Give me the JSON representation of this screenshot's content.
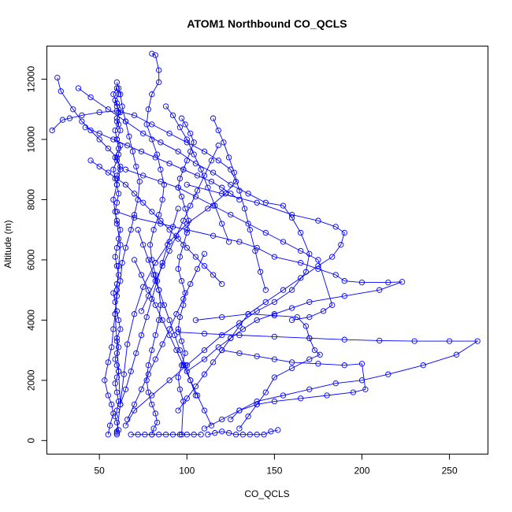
{
  "chart_data": {
    "type": "line",
    "title": "ATOM1 Northbound CO_QCLS",
    "xlabel": "CO_QCLS",
    "ylabel": "Altitude (m)",
    "xlim": [
      20,
      272
    ],
    "ylim": [
      -450,
      13100
    ],
    "xticks": [
      50,
      100,
      150,
      200,
      250
    ],
    "yticks": [
      0,
      2000,
      4000,
      6000,
      8000,
      10000,
      12000
    ],
    "grid": false,
    "series_color": "#0000ff",
    "marker": "open-circle",
    "series": [
      {
        "x": [
          60,
          60,
          61,
          60,
          59,
          60,
          61,
          60,
          59,
          60,
          61,
          60,
          59,
          60,
          61,
          60,
          62,
          61,
          60,
          59,
          58,
          60,
          61,
          60,
          59,
          60,
          61,
          62,
          60,
          59,
          60,
          61,
          60,
          59,
          58,
          60,
          61,
          62,
          60,
          59,
          61,
          60,
          62,
          60,
          59,
          61,
          60,
          58,
          60,
          61,
          60,
          62,
          60,
          61,
          59,
          62,
          60
        ],
        "y": [
          200,
          250,
          350,
          600,
          800,
          1000,
          1300,
          1600,
          1900,
          2100,
          2300,
          2500,
          2700,
          2900,
          3100,
          3400,
          3700,
          4000,
          4300,
          4600,
          4900,
          5200,
          5500,
          5800,
          6100,
          6400,
          6700,
          7000,
          7300,
          7600,
          7900,
          8200,
          8500,
          8700,
          9000,
          9300,
          9500,
          9800,
          10000,
          10300,
          10500,
          10700,
          10900,
          11100,
          11300,
          11500,
          11700,
          11500,
          11200,
          10900,
          10600,
          10300,
          10000,
          9700,
          9400,
          9100,
          8800
        ]
      },
      {
        "x": [
          55,
          56,
          58,
          57,
          55,
          53,
          55,
          57,
          58,
          59,
          60,
          62,
          63,
          65,
          68,
          70,
          72,
          73,
          71,
          69,
          67,
          65,
          63,
          62,
          61,
          60
        ],
        "y": [
          200,
          500,
          900,
          1200,
          1500,
          2000,
          2600,
          3100,
          3700,
          4200,
          4800,
          5300,
          5900,
          6400,
          7000,
          7500,
          8000,
          8600,
          9100,
          9600,
          10100,
          10600,
          11100,
          11500,
          11700,
          11900
        ]
      },
      {
        "x": [
          26,
          28,
          35,
          40,
          45,
          50,
          55,
          60,
          62,
          60,
          58,
          60,
          62,
          61,
          60,
          59,
          60,
          61,
          62,
          60
        ],
        "y": [
          12050,
          11600,
          11000,
          10600,
          10300,
          10000,
          9700,
          9400,
          9000,
          8500,
          8000,
          7200,
          6500,
          5800,
          5000,
          4200,
          3300,
          2300,
          1200,
          300
        ]
      },
      {
        "x": [
          23,
          29,
          33,
          40,
          50,
          60,
          70,
          80,
          90,
          100,
          110,
          118,
          125,
          128,
          122,
          112,
          100,
          90,
          82,
          75,
          70,
          66,
          64,
          62
        ],
        "y": [
          10300,
          10650,
          10700,
          10800,
          10900,
          10950,
          10800,
          10500,
          10200,
          9900,
          9600,
          9300,
          9000,
          8600,
          8200,
          7700,
          7200,
          6600,
          5900,
          5100,
          4200,
          3200,
          2200,
          1200
        ]
      },
      {
        "x": [
          38,
          45,
          55,
          65,
          75,
          85,
          95,
          105,
          115,
          125,
          135,
          145,
          155,
          160,
          165,
          170,
          168,
          160,
          150,
          140,
          130,
          120,
          110,
          100,
          90,
          80,
          70,
          65
        ],
        "y": [
          11700,
          11400,
          11000,
          10600,
          10200,
          9900,
          9600,
          9200,
          8900,
          8500,
          8200,
          7900,
          7800,
          7400,
          6900,
          6200,
          5600,
          5000,
          4600,
          4300,
          3900,
          3500,
          3000,
          2500,
          2000,
          1500,
          1000,
          500
        ]
      },
      {
        "x": [
          80,
          82,
          84,
          84,
          80,
          78,
          77,
          80,
          83,
          85,
          87,
          86,
          84,
          81,
          79,
          80,
          82,
          84,
          85,
          84,
          82,
          80,
          78,
          77,
          78,
          80,
          82,
          83,
          81,
          80
        ],
        "y": [
          12850,
          12800,
          12300,
          11900,
          11500,
          11000,
          10500,
          10000,
          9500,
          9000,
          8500,
          8000,
          7500,
          7000,
          6500,
          6000,
          5500,
          5000,
          4500,
          4000,
          3500,
          3000,
          2500,
          2000,
          1600,
          1200,
          900,
          600,
          400,
          200
        ]
      },
      {
        "x": [
          97,
          99,
          102,
          104,
          102,
          100,
          98,
          96,
          95,
          97,
          99,
          101,
          100,
          98,
          96,
          95,
          97,
          99,
          98,
          96,
          95,
          97,
          99,
          97,
          95,
          96,
          98,
          97
        ],
        "y": [
          10700,
          10500,
          10200,
          9900,
          9600,
          9300,
          9000,
          8700,
          8400,
          8100,
          7700,
          7300,
          6900,
          6500,
          6100,
          5700,
          5300,
          4900,
          4500,
          4100,
          3700,
          3300,
          2900,
          2500,
          2100,
          1700,
          1300,
          200
        ]
      },
      {
        "x": [
          60,
          70,
          85,
          100,
          115,
          130,
          140,
          150,
          165,
          175,
          185,
          190,
          200,
          215,
          223,
          210,
          190,
          170,
          160,
          150,
          140,
          132,
          125,
          118,
          110,
          100
        ],
        "y": [
          7600,
          7400,
          7200,
          7000,
          6800,
          6600,
          6400,
          6100,
          5900,
          5700,
          5500,
          5300,
          5250,
          5250,
          5270,
          5000,
          4800,
          4600,
          4400,
          4200,
          4000,
          3700,
          3400,
          3100,
          2700,
          2300
        ]
      },
      {
        "x": [
          100,
          120,
          140,
          160,
          175,
          185,
          190,
          188,
          183,
          175,
          165,
          155,
          145,
          135,
          130,
          125,
          120,
          115,
          110,
          105,
          100,
          95
        ],
        "y": [
          8500,
          8200,
          7900,
          7500,
          7300,
          7100,
          6900,
          6500,
          6100,
          5800,
          5400,
          5000,
          4600,
          4200,
          3800,
          3400,
          3000,
          2600,
          2200,
          1800,
          1400,
          1000
        ]
      },
      {
        "x": [
          95,
          110,
          130,
          150,
          170,
          190,
          210,
          230,
          250,
          266,
          254,
          235,
          215,
          200,
          185,
          170,
          155,
          140,
          130,
          120,
          110
        ],
        "y": [
          3600,
          3550,
          3500,
          3450,
          3400,
          3350,
          3320,
          3300,
          3300,
          3300,
          2850,
          2500,
          2200,
          2000,
          1900,
          1700,
          1500,
          1300,
          1000,
          700,
          400
        ]
      },
      {
        "x": [
          105,
          120,
          135,
          150,
          163,
          168,
          170,
          173,
          176,
          170,
          160,
          150,
          145,
          140,
          135,
          130
        ],
        "y": [
          4000,
          4100,
          4200,
          4150,
          4100,
          3800,
          3400,
          3000,
          2850,
          2700,
          2400,
          2100,
          1600,
          1200,
          800,
          400
        ]
      },
      {
        "x": [
          65,
          75,
          85,
          95,
          105,
          115,
          125,
          135,
          145,
          155,
          165,
          175,
          183,
          178,
          170,
          160
        ],
        "y": [
          9000,
          8800,
          8600,
          8400,
          8100,
          7800,
          7500,
          7200,
          6900,
          6600,
          6300,
          6000,
          4500,
          4300,
          4100,
          4000
        ]
      },
      {
        "x": [
          120,
          130,
          140,
          150,
          160,
          175,
          190,
          200,
          202,
          195,
          180,
          165,
          150,
          140,
          130,
          125
        ],
        "y": [
          3000,
          2900,
          2800,
          2700,
          2600,
          2550,
          2500,
          2550,
          1700,
          1600,
          1500,
          1400,
          1300,
          1200,
          1000,
          700
        ]
      },
      {
        "x": [
          45,
          50,
          55,
          60,
          65,
          70,
          75,
          80,
          85,
          90,
          95,
          100,
          105,
          110,
          115,
          120
        ],
        "y": [
          9300,
          9100,
          8900,
          8700,
          8500,
          8200,
          7900,
          7600,
          7300,
          7000,
          6700,
          6400,
          6100,
          5800,
          5500,
          5200
        ]
      },
      {
        "x": [
          42,
          50,
          58,
          66,
          74,
          82,
          90,
          98,
          106,
          114,
          120,
          125,
          130
        ],
        "y": [
          10400,
          10200,
          10000,
          9800,
          9600,
          9400,
          9200,
          9000,
          8800,
          8600,
          8400,
          8200,
          8000
        ]
      },
      {
        "x": [
          115,
          118,
          121,
          124,
          127,
          130,
          133,
          136,
          139,
          142,
          145
        ],
        "y": [
          10700,
          10300,
          9900,
          9400,
          8900,
          8300,
          7700,
          7000,
          6300,
          5600,
          5000
        ]
      },
      {
        "x": [
          70,
          74,
          78,
          82,
          86,
          90,
          94,
          98,
          102,
          106,
          110,
          114
        ],
        "y": [
          6000,
          5500,
          5000,
          4500,
          4000,
          3500,
          3000,
          2500,
          2000,
          1500,
          1000,
          500
        ]
      },
      {
        "x": [
          110,
          106,
          102,
          98,
          94,
          90,
          86,
          82,
          78,
          74,
          70,
          66
        ],
        "y": [
          6200,
          5700,
          5200,
          4700,
          4200,
          3700,
          3200,
          2700,
          2200,
          1700,
          1200,
          700
        ]
      },
      {
        "x": [
          68,
          72,
          76,
          80,
          84,
          88,
          92,
          96,
          100,
          104,
          108
        ],
        "y": [
          200,
          200,
          200,
          200,
          200,
          200,
          200,
          200,
          200,
          200,
          200
        ]
      },
      {
        "x": [
          112,
          116,
          120,
          124,
          128,
          132,
          136,
          140,
          144,
          148,
          152
        ],
        "y": [
          200,
          250,
          300,
          250,
          200,
          200,
          200,
          200,
          200,
          300,
          350
        ]
      },
      {
        "x": [
          88,
          92,
          96,
          100,
          104,
          108,
          112,
          116,
          120,
          124
        ],
        "y": [
          11100,
          10800,
          10400,
          10000,
          9500,
          9000,
          8400,
          7800,
          7200,
          6600
        ]
      },
      {
        "x": [
          62,
          65,
          68,
          71,
          74,
          77,
          80,
          83,
          86,
          89,
          92,
          95
        ],
        "y": [
          1200,
          1700,
          2300,
          2900,
          3500,
          4100,
          4700,
          5300,
          5900,
          6500,
          7100,
          7700
        ]
      },
      {
        "x": [
          105,
          102,
          99,
          96,
          93,
          90,
          87,
          84,
          81,
          78,
          75,
          72
        ],
        "y": [
          1500,
          2000,
          2500,
          3000,
          3500,
          4000,
          4500,
          5000,
          5500,
          6000,
          6500,
          7000
        ]
      },
      {
        "x": [
          118,
          114,
          110,
          106,
          102,
          98,
          94,
          90,
          86,
          82,
          78,
          74
        ],
        "y": [
          9800,
          9300,
          8800,
          8300,
          7800,
          7300,
          6800,
          6300,
          5800,
          5300,
          4800,
          4300
        ]
      }
    ]
  }
}
